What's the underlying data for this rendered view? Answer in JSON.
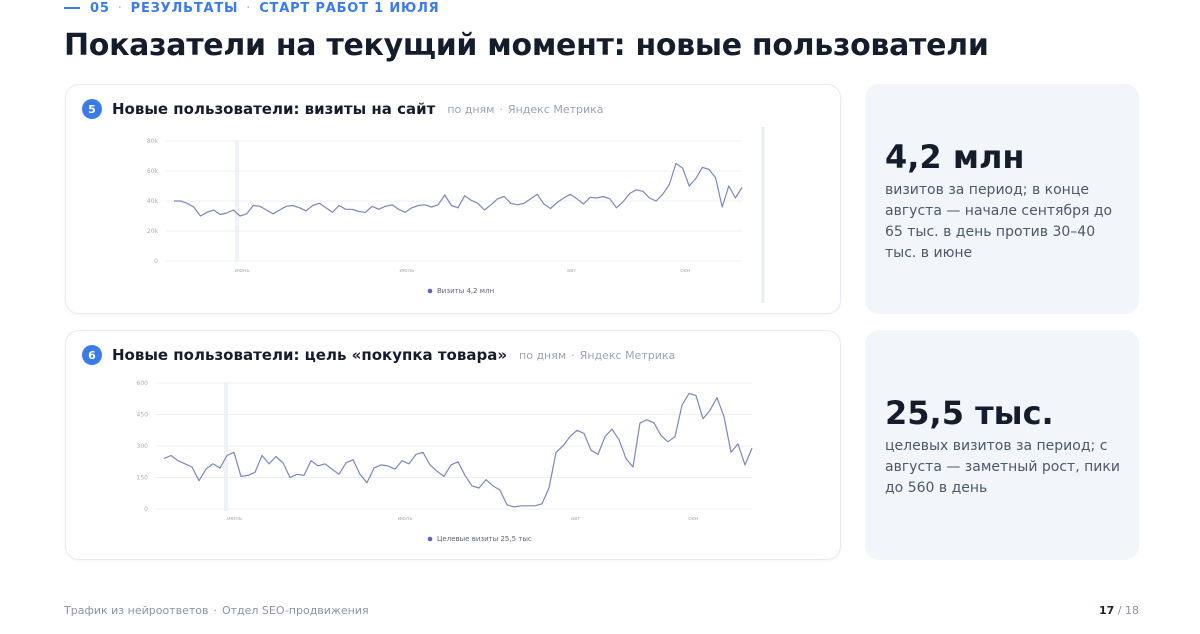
{
  "kicker": {
    "num": "05",
    "section": "РЕЗУЛЬТАТЫ",
    "note": "СТАРТ РАБОТ 1 ИЮЛЯ"
  },
  "page_title": "Показатели на текущий момент: новые пользователи",
  "cards": [
    {
      "badge": "5",
      "title": "Новые пользователи: визиты на сайт",
      "period": "по дням",
      "source": "Яндекс Метрика"
    },
    {
      "badge": "6",
      "title": "Новые пользователи: цель «покупка товара»",
      "period": "по дням",
      "source": "Яндекс Метрика"
    }
  ],
  "stats": [
    {
      "value": "4,2 млн",
      "desc": "визитов за период; в конце августа — начале сентября до 65 тыс. в день против 30–40 тыс. в июне"
    },
    {
      "value": "25,5 тыс.",
      "desc": "целевых визитов за период; с августа — заметный рост, пики до 560 в день"
    }
  ],
  "footer": {
    "left": "Трафик из нейроответов",
    "dept": "Отдел SEO-продвижения",
    "page": "17",
    "total": "/ 18"
  },
  "colors": {
    "accent": "#3b7be8",
    "line": "#7d86b8",
    "legend_dot": "#5b5fc7"
  },
  "chart_data": [
    {
      "type": "line",
      "title": "Новые пользователи: визиты на сайт",
      "yticks": [
        "0",
        "20k",
        "40k",
        "60k",
        "80k"
      ],
      "ylim": [
        0,
        80000
      ],
      "xticks": [
        "июнь",
        "июль",
        "авг",
        "сен"
      ],
      "xtick_positions": [
        12,
        41,
        70,
        90
      ],
      "legend": {
        "name": "Визиты",
        "total": "4,2 млн"
      },
      "series": [
        {
          "name": "Визиты",
          "values": [
            40000,
            40000,
            38500,
            36000,
            30000,
            32500,
            34000,
            31000,
            32000,
            34000,
            30000,
            31500,
            37000,
            36500,
            34000,
            31500,
            34000,
            36500,
            37000,
            35500,
            33500,
            37000,
            38500,
            35500,
            32500,
            37000,
            34500,
            34500,
            33000,
            32500,
            36500,
            34500,
            36500,
            37500,
            34500,
            32500,
            35500,
            37000,
            37500,
            36000,
            37500,
            44000,
            37000,
            35500,
            43500,
            40500,
            38500,
            34000,
            37500,
            41500,
            43000,
            38500,
            37500,
            38500,
            41500,
            44500,
            38000,
            35000,
            39000,
            42000,
            44500,
            41500,
            38000,
            42500,
            42000,
            43000,
            41500,
            35500,
            39500,
            45000,
            47500,
            46500,
            42000,
            40000,
            44500,
            51000,
            65000,
            62000,
            50000,
            55000,
            62500,
            61000,
            55500,
            36000,
            50000,
            42000,
            49000
          ]
        }
      ]
    },
    {
      "type": "line",
      "title": "Новые пользователи: цель «покупка товара»",
      "yticks": [
        "0",
        "150",
        "300",
        "450",
        "600"
      ],
      "ylim": [
        0,
        600
      ],
      "xticks": [
        "июнь",
        "июль",
        "авг",
        "сен"
      ],
      "xtick_positions": [
        12,
        41,
        70,
        90
      ],
      "legend": {
        "name": "Целевые визиты",
        "total": "25,5 тыс"
      },
      "series": [
        {
          "name": "Целевые визиты",
          "values": [
            240,
            255,
            230,
            215,
            200,
            135,
            190,
            215,
            195,
            255,
            270,
            155,
            160,
            175,
            255,
            215,
            250,
            220,
            150,
            165,
            160,
            230,
            205,
            215,
            190,
            165,
            220,
            235,
            165,
            125,
            195,
            210,
            205,
            190,
            230,
            215,
            260,
            270,
            210,
            180,
            155,
            210,
            225,
            160,
            110,
            100,
            140,
            110,
            90,
            20,
            10,
            15,
            15,
            15,
            25,
            100,
            270,
            300,
            345,
            375,
            360,
            280,
            260,
            345,
            380,
            330,
            240,
            200,
            410,
            425,
            410,
            350,
            320,
            345,
            495,
            550,
            540,
            430,
            470,
            530,
            440,
            270,
            310,
            210,
            290
          ]
        }
      ]
    }
  ]
}
